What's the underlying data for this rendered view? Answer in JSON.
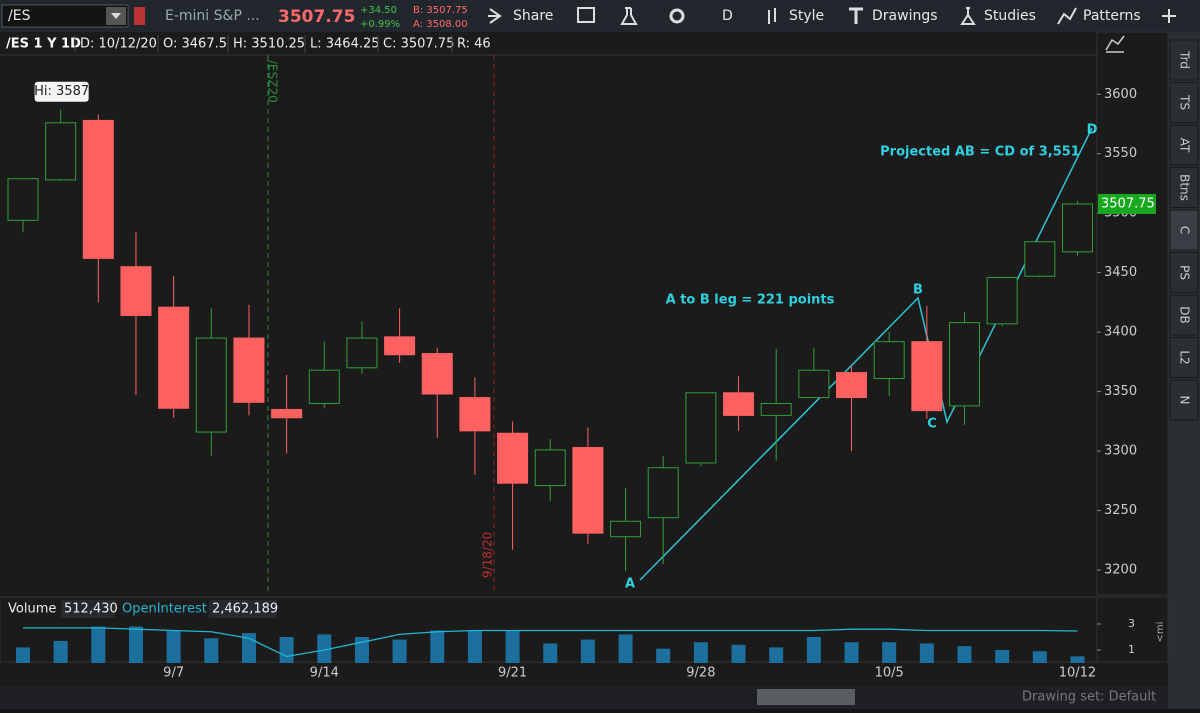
{
  "toolbar": {
    "symbol": "/ES",
    "description": "E-mini S&P ...",
    "last": "3507.75",
    "change": "+34.50",
    "change_pct": "+0.99%",
    "bid": "B: 3507.75",
    "ask": "A: 3508.00",
    "buttons": [
      "Share",
      "D",
      "Style",
      "Drawings",
      "Studies",
      "Patterns"
    ]
  },
  "info_bar": [
    "/ES 1 Y 1D",
    "D: 10/12/20",
    "O: 3467.5",
    "H: 3510.25",
    "L: 3464.25",
    "C: 3507.75",
    "R: 46"
  ],
  "sidebar_tabs": [
    "Trd",
    "TS",
    "AT",
    "Btns",
    "C",
    "PS",
    "DB",
    "L2",
    "N"
  ],
  "volume_side_label": "<mi",
  "footer": {
    "drawing_set": "Drawing set: Default"
  },
  "chart_data": [
    {
      "type": "candlestick",
      "categories": [
        null,
        null,
        null,
        null,
        "9/7",
        null,
        null,
        null,
        "9/14",
        null,
        null,
        null,
        null,
        "9/21",
        null,
        null,
        null,
        null,
        "9/28",
        null,
        null,
        null,
        null,
        "10/5",
        null,
        null,
        null,
        null,
        "10/12"
      ],
      "open": [
        3494,
        3528,
        3578,
        3455,
        3421,
        3316,
        3395,
        3335,
        3340,
        3370,
        3396,
        3382,
        3345,
        3315,
        3271,
        3303,
        3228,
        3244,
        3290,
        3349,
        3330,
        3345,
        3366,
        3361,
        3392,
        3338,
        3407,
        3447,
        3467.5
      ],
      "high": [
        3529,
        3587,
        3583,
        3484,
        3447,
        3420,
        3423,
        3364,
        3392,
        3409,
        3420,
        3387,
        3362,
        3325,
        3310,
        3320,
        3269,
        3296,
        3349,
        3363,
        3386,
        3387,
        3372,
        3400,
        3422,
        3417,
        3446,
        3476,
        3510.25
      ],
      "low": [
        3484,
        3527,
        3425,
        3347,
        3328,
        3296,
        3330,
        3298,
        3336,
        3365,
        3374,
        3311,
        3280,
        3217,
        3258,
        3222,
        3199,
        3205,
        3287,
        3317,
        3292,
        3345,
        3300,
        3346,
        3327,
        3322,
        3405,
        3446,
        3464.25
      ],
      "close": [
        3529,
        3576,
        3462,
        3414,
        3336,
        3395,
        3341,
        3328,
        3368,
        3395,
        3381,
        3348,
        3317,
        3273,
        3301,
        3231,
        3241,
        3286,
        3349,
        3330,
        3340,
        3368,
        3345,
        3392,
        3334,
        3408,
        3446,
        3476,
        3507.75
      ],
      "up_color": "#2f9e3a",
      "down_color": "#ff6161",
      "ylim": [
        3179,
        3633
      ],
      "yticks": [
        3200,
        3250,
        3300,
        3350,
        3400,
        3450,
        3500,
        3550,
        3600
      ],
      "last_price": 3507.75,
      "last_price_color": "#18a81e",
      "annotations": {
        "high_label": "Hi: 3587",
        "ab_leg": "A to B leg = 221 points",
        "projection": "Projected AB = CD of 3,551",
        "points": [
          "A",
          "B",
          "C",
          "D"
        ]
      },
      "markers": [
        "/ESZ20",
        "9/18/20"
      ]
    },
    {
      "type": "bar",
      "series": [
        {
          "name": "Volume",
          "value_label": "512,430",
          "color": "#1d6f9e",
          "values": [
            1.2,
            1.7,
            2.8,
            2.8,
            2.5,
            1.9,
            2.3,
            2.0,
            2.2,
            2.0,
            1.8,
            2.5,
            2.5,
            2.5,
            1.5,
            1.8,
            2.2,
            1.1,
            1.6,
            1.4,
            1.2,
            2.0,
            1.6,
            1.6,
            1.5,
            1.3,
            1.0,
            0.9,
            0.51243
          ]
        },
        {
          "name": "OpenInterest",
          "value_label": "2,462,189",
          "color": "#22b5d0",
          "values": [
            2.7,
            2.7,
            2.7,
            2.6,
            2.5,
            2.4,
            1.9,
            0.5,
            1.0,
            1.6,
            2.2,
            2.4,
            2.5,
            2.5,
            2.5,
            2.5,
            2.5,
            2.5,
            2.5,
            2.5,
            2.5,
            2.5,
            2.6,
            2.6,
            2.5,
            2.5,
            2.5,
            2.5,
            2.462189
          ]
        }
      ],
      "ylim": [
        0,
        3.46
      ],
      "yticks": [
        1,
        3
      ]
    }
  ]
}
